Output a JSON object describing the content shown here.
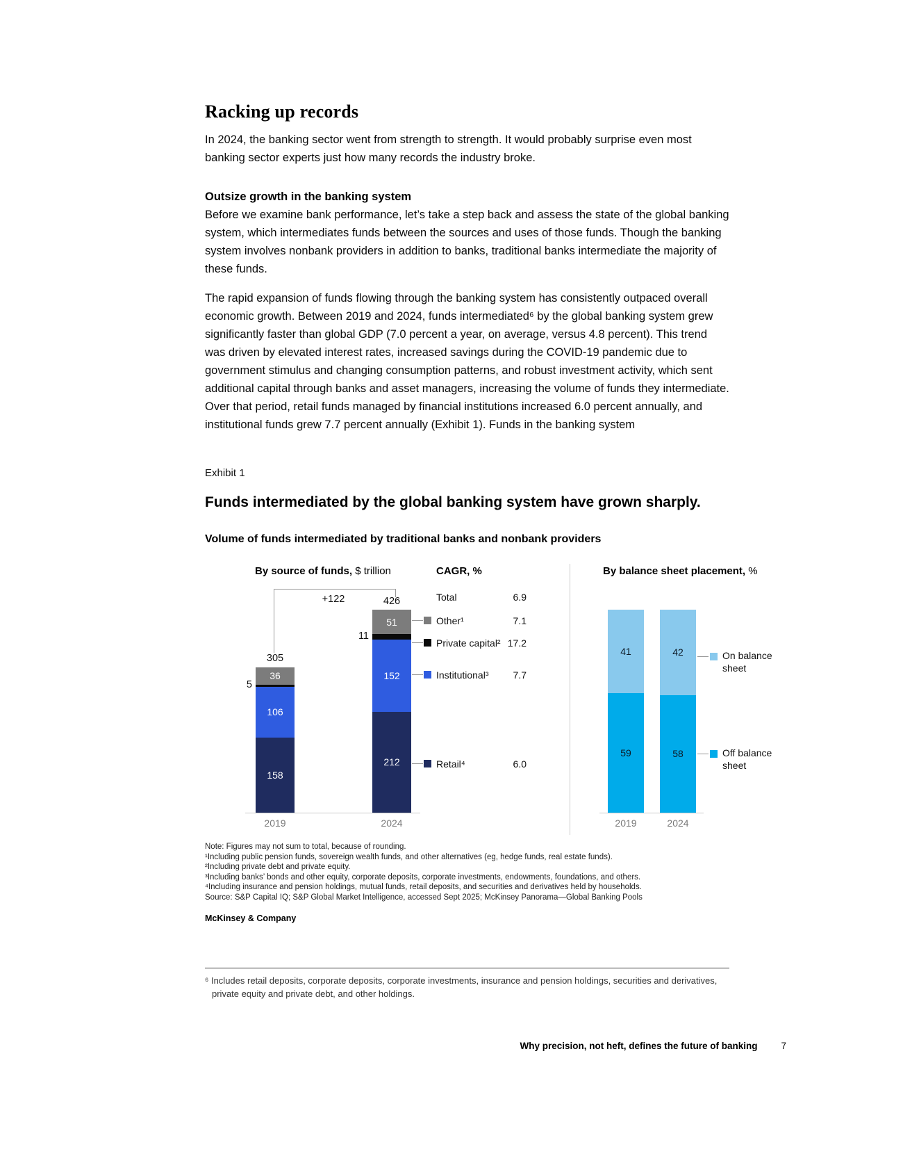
{
  "page": {
    "title": "Racking up records",
    "intro": "In 2024, the banking sector went from strength to strength. It would probably surprise even most banking sector experts just how many records the industry broke.",
    "section_heading": "Outsize growth in the banking system",
    "para_state": "Before we examine bank performance, let’s take a step back and assess the state of the global banking system, which intermediates funds between the sources and uses of those funds. Though the banking system involves nonbank providers in addition to banks, traditional banks intermediate the majority of these funds.",
    "para_expansion": "The rapid expansion of funds flowing through the banking system has consistently outpaced overall economic growth. Between 2019 and 2024, funds intermediated⁶ by the global banking system grew significantly faster than global GDP (7.0 percent a year, on average, versus 4.8 percent). This trend was driven by elevated interest rates, increased savings during the COVID-19 pandemic due to government stimulus and changing consumption patterns, and robust investment activity, which sent additional capital through banks and asset managers, increasing the volume of funds they intermediate. Over that period, retail funds managed by financial institutions increased 6.0 percent annually, and institutional funds grew 7.7 percent annually (Exhibit 1). Funds in the banking system"
  },
  "exhibit": {
    "label": "Exhibit 1",
    "title": "Funds intermediated by the global banking system have grown sharply.",
    "subtitle": "Volume of funds intermediated by traditional banks and nonbank providers"
  },
  "chart_data": [
    {
      "type": "bar",
      "stacked": true,
      "heading_bold": "By source of funds,",
      "heading_unit": "$ trillion",
      "categories": [
        "2019",
        "2024"
      ],
      "series": [
        {
          "name": "Retail⁴",
          "color": "#1f2c5f",
          "values": [
            158,
            212
          ],
          "cagr": "6.0"
        },
        {
          "name": "Institutional³",
          "color": "#2f5ce0",
          "values": [
            106,
            152
          ],
          "cagr": "7.7"
        },
        {
          "name": "Private capital²",
          "color": "#0a0a0a",
          "values": [
            5,
            11
          ],
          "cagr": "17.2",
          "label_outside": true
        },
        {
          "name": "Other¹",
          "color": "#7c7c7c",
          "values": [
            36,
            51
          ],
          "cagr": "7.1"
        }
      ],
      "totals": [
        305,
        426
      ],
      "delta_label": "+122",
      "cagr_header": "CAGR, %",
      "cagr_total_label": "Total",
      "cagr_total_value": "6.9"
    },
    {
      "type": "bar",
      "stacked": true,
      "percent": true,
      "heading_bold": "By balance sheet placement,",
      "heading_unit": "%",
      "categories": [
        "2019",
        "2024"
      ],
      "series": [
        {
          "name": "Off balance sheet",
          "color": "#00abea",
          "values": [
            59,
            58
          ],
          "label_color": "#0d1a26"
        },
        {
          "name": "On balance sheet",
          "color": "#89c9ed",
          "values": [
            41,
            42
          ],
          "label_color": "#0d1a26"
        }
      ]
    }
  ],
  "notes": [
    "Note: Figures may not sum to total, because of rounding.",
    "¹Including public pension funds, sovereign wealth funds, and other alternatives (eg, hedge funds, real estate funds).",
    "²Including private debt and private equity.",
    "³Including banks’ bonds and other equity, corporate deposits, corporate investments, endowments, foundations, and others.",
    "⁴Including insurance and pension holdings, mutual funds, retail deposits, and securities and derivatives held by households.",
    "Source: S&P Capital IQ; S&P Global Market Intelligence, accessed Sept 2025; McKinsey Panorama—Global Banking Pools"
  ],
  "brand": "McKinsey & Company",
  "footnote": "⁶ Includes retail deposits, corporate deposits, corporate investments, insurance and pension holdings, securities and derivatives, private equity and private debt, and other holdings.",
  "footer": {
    "title": "Why precision, not heft, defines the future of banking",
    "page_number": "7"
  }
}
